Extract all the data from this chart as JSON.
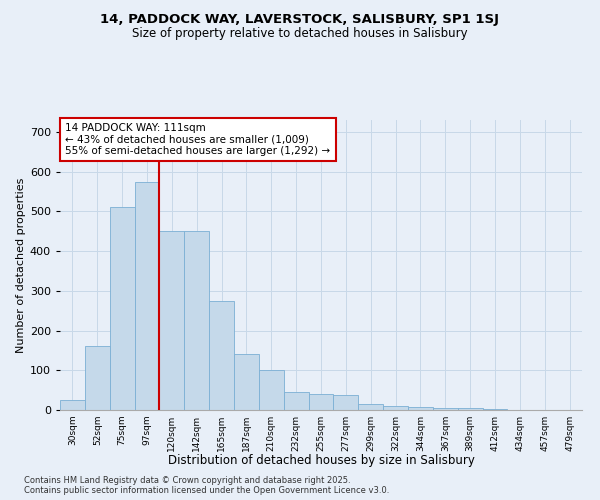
{
  "title1": "14, PADDOCK WAY, LAVERSTOCK, SALISBURY, SP1 1SJ",
  "title2": "Size of property relative to detached houses in Salisbury",
  "xlabel": "Distribution of detached houses by size in Salisbury",
  "ylabel": "Number of detached properties",
  "categories": [
    "30sqm",
    "52sqm",
    "75sqm",
    "97sqm",
    "120sqm",
    "142sqm",
    "165sqm",
    "187sqm",
    "210sqm",
    "232sqm",
    "255sqm",
    "277sqm",
    "299sqm",
    "322sqm",
    "344sqm",
    "367sqm",
    "389sqm",
    "412sqm",
    "434sqm",
    "457sqm",
    "479sqm"
  ],
  "values": [
    25,
    160,
    510,
    575,
    450,
    450,
    275,
    140,
    100,
    45,
    40,
    38,
    15,
    10,
    8,
    4,
    4,
    2,
    1,
    1,
    1
  ],
  "bar_color": "#c5d9ea",
  "bar_edge_color": "#7bafd4",
  "grid_color": "#c8d8e8",
  "bg_color": "#e8eff8",
  "vline_x_index": 3.5,
  "annotation_title": "14 PADDOCK WAY: 111sqm",
  "annotation_line1": "← 43% of detached houses are smaller (1,009)",
  "annotation_line2": "55% of semi-detached houses are larger (1,292) →",
  "annotation_box_color": "#ffffff",
  "annotation_box_edge": "#cc0000",
  "vline_color": "#cc0000",
  "footnote1": "Contains HM Land Registry data © Crown copyright and database right 2025.",
  "footnote2": "Contains public sector information licensed under the Open Government Licence v3.0.",
  "ylim": [
    0,
    730
  ],
  "yticks": [
    0,
    100,
    200,
    300,
    400,
    500,
    600,
    700
  ]
}
